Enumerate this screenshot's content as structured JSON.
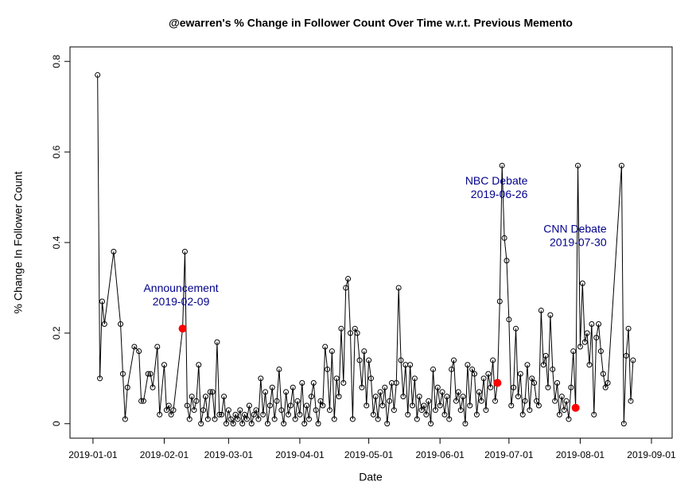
{
  "chart_data": {
    "type": "line",
    "title": "@ewarren's % Change in Follower Count Over Time w.r.t. Previous Memento",
    "x_label": "Date",
    "y_label": "% Change In Follower Count",
    "color": "#000000",
    "highlight_color": "#ff0000",
    "xlim": [
      "2018-12-22",
      "2019-09-10"
    ],
    "ylim": [
      -0.032,
      0.832
    ],
    "xticks": [
      "2019-01-01",
      "2019-02-01",
      "2019-03-01",
      "2019-04-01",
      "2019-05-01",
      "2019-06-01",
      "2019-07-01",
      "2019-08-01",
      "2019-09-01"
    ],
    "yticks": [
      0,
      0.2,
      0.4,
      0.6,
      0.8
    ],
    "annotations": [
      {
        "label": "Announcement",
        "date": "2019-02-09",
        "value": 0.21
      },
      {
        "label": "NBC Debate",
        "date": "2019-06-26",
        "value": 0.09
      },
      {
        "label": "CNN Debate",
        "date": "2019-07-30",
        "value": 0.035
      }
    ],
    "x": [
      "2019-01-03",
      "2019-01-04",
      "2019-01-05",
      "2019-01-06",
      "2019-01-10",
      "2019-01-13",
      "2019-01-14",
      "2019-01-15",
      "2019-01-16",
      "2019-01-19",
      "2019-01-21",
      "2019-01-22",
      "2019-01-23",
      "2019-01-25",
      "2019-01-26",
      "2019-01-27",
      "2019-01-29",
      "2019-01-30",
      "2019-02-01",
      "2019-02-02",
      "2019-02-03",
      "2019-02-04",
      "2019-02-05",
      "2019-02-09",
      "2019-02-10",
      "2019-02-11",
      "2019-02-12",
      "2019-02-13",
      "2019-02-14",
      "2019-02-15",
      "2019-02-16",
      "2019-02-17",
      "2019-02-18",
      "2019-02-19",
      "2019-02-20",
      "2019-02-21",
      "2019-02-22",
      "2019-02-23",
      "2019-02-24",
      "2019-02-25",
      "2019-02-26",
      "2019-02-27",
      "2019-02-28",
      "2019-03-01",
      "2019-03-02",
      "2019-03-03",
      "2019-03-04",
      "2019-03-05",
      "2019-03-06",
      "2019-03-07",
      "2019-03-08",
      "2019-03-09",
      "2019-03-10",
      "2019-03-11",
      "2019-03-12",
      "2019-03-13",
      "2019-03-14",
      "2019-03-15",
      "2019-03-16",
      "2019-03-17",
      "2019-03-18",
      "2019-03-19",
      "2019-03-20",
      "2019-03-21",
      "2019-03-22",
      "2019-03-23",
      "2019-03-24",
      "2019-03-25",
      "2019-03-26",
      "2019-03-27",
      "2019-03-28",
      "2019-03-29",
      "2019-03-30",
      "2019-03-31",
      "2019-04-01",
      "2019-04-02",
      "2019-04-03",
      "2019-04-04",
      "2019-04-05",
      "2019-04-06",
      "2019-04-07",
      "2019-04-08",
      "2019-04-09",
      "2019-04-10",
      "2019-04-11",
      "2019-04-12",
      "2019-04-13",
      "2019-04-14",
      "2019-04-15",
      "2019-04-16",
      "2019-04-17",
      "2019-04-18",
      "2019-04-19",
      "2019-04-20",
      "2019-04-21",
      "2019-04-22",
      "2019-04-23",
      "2019-04-24",
      "2019-04-25",
      "2019-04-26",
      "2019-04-27",
      "2019-04-28",
      "2019-04-29",
      "2019-04-30",
      "2019-05-01",
      "2019-05-02",
      "2019-05-03",
      "2019-05-04",
      "2019-05-05",
      "2019-05-06",
      "2019-05-07",
      "2019-05-08",
      "2019-05-09",
      "2019-05-10",
      "2019-05-11",
      "2019-05-12",
      "2019-05-13",
      "2019-05-14",
      "2019-05-15",
      "2019-05-16",
      "2019-05-17",
      "2019-05-18",
      "2019-05-19",
      "2019-05-20",
      "2019-05-21",
      "2019-05-22",
      "2019-05-23",
      "2019-05-24",
      "2019-05-25",
      "2019-05-26",
      "2019-05-27",
      "2019-05-28",
      "2019-05-29",
      "2019-05-30",
      "2019-05-31",
      "2019-06-01",
      "2019-06-02",
      "2019-06-03",
      "2019-06-04",
      "2019-06-05",
      "2019-06-06",
      "2019-06-07",
      "2019-06-08",
      "2019-06-09",
      "2019-06-10",
      "2019-06-11",
      "2019-06-12",
      "2019-06-13",
      "2019-06-14",
      "2019-06-15",
      "2019-06-16",
      "2019-06-17",
      "2019-06-18",
      "2019-06-19",
      "2019-06-20",
      "2019-06-21",
      "2019-06-22",
      "2019-06-23",
      "2019-06-24",
      "2019-06-25",
      "2019-06-26",
      "2019-06-27",
      "2019-06-28",
      "2019-06-29",
      "2019-06-30",
      "2019-07-01",
      "2019-07-02",
      "2019-07-03",
      "2019-07-04",
      "2019-07-05",
      "2019-07-06",
      "2019-07-07",
      "2019-07-08",
      "2019-07-09",
      "2019-07-10",
      "2019-07-11",
      "2019-07-12",
      "2019-07-13",
      "2019-07-14",
      "2019-07-15",
      "2019-07-16",
      "2019-07-17",
      "2019-07-18",
      "2019-07-19",
      "2019-07-20",
      "2019-07-21",
      "2019-07-22",
      "2019-07-23",
      "2019-07-24",
      "2019-07-25",
      "2019-07-26",
      "2019-07-27",
      "2019-07-28",
      "2019-07-29",
      "2019-07-30",
      "2019-07-31",
      "2019-08-01",
      "2019-08-02",
      "2019-08-03",
      "2019-08-04",
      "2019-08-05",
      "2019-08-06",
      "2019-08-07",
      "2019-08-08",
      "2019-08-09",
      "2019-08-10",
      "2019-08-11",
      "2019-08-12",
      "2019-08-13",
      "2019-08-19",
      "2019-08-20",
      "2019-08-21",
      "2019-08-22",
      "2019-08-23",
      "2019-08-24"
    ],
    "values": [
      0.77,
      0.1,
      0.27,
      0.22,
      0.38,
      0.22,
      0.11,
      0.01,
      0.08,
      0.17,
      0.16,
      0.05,
      0.05,
      0.11,
      0.11,
      0.08,
      0.17,
      0.02,
      0.13,
      0.03,
      0.04,
      0.02,
      0.03,
      0.21,
      0.38,
      0.04,
      0.01,
      0.06,
      0.03,
      0.05,
      0.13,
      0,
      0.03,
      0.06,
      0.01,
      0.07,
      0.07,
      0.01,
      0.18,
      0.02,
      0.02,
      0.06,
      0,
      0.03,
      0.01,
      0,
      0.02,
      0.01,
      0.03,
      0,
      0.02,
      0.01,
      0.04,
      0,
      0.02,
      0.03,
      0.01,
      0.1,
      0.02,
      0.07,
      0,
      0.04,
      0.08,
      0.01,
      0.05,
      0.12,
      0.03,
      0,
      0.07,
      0.02,
      0.04,
      0.08,
      0.01,
      0.05,
      0.02,
      0.09,
      0,
      0.04,
      0.01,
      0.06,
      0.09,
      0.03,
      0,
      0.05,
      0.04,
      0.17,
      0.12,
      0.03,
      0.16,
      0.01,
      0.1,
      0.06,
      0.21,
      0.09,
      0.3,
      0.32,
      0.2,
      0.01,
      0.21,
      0.2,
      0.14,
      0.08,
      0.16,
      0.04,
      0.14,
      0.1,
      0.02,
      0.06,
      0.01,
      0.07,
      0.04,
      0.08,
      0,
      0.05,
      0.09,
      0.03,
      0.09,
      0.3,
      0.14,
      0.06,
      0.13,
      0.02,
      0.13,
      0.04,
      0.1,
      0.01,
      0.06,
      0.03,
      0.04,
      0.02,
      0.05,
      0,
      0.12,
      0.03,
      0.08,
      0.04,
      0.07,
      0.02,
      0.06,
      0.01,
      0.12,
      0.14,
      0.05,
      0.07,
      0.03,
      0.06,
      0,
      0.13,
      0.04,
      0.12,
      0.11,
      0.02,
      0.07,
      0.05,
      0.1,
      0.03,
      0.11,
      0.08,
      0.14,
      0.05,
      0.09,
      0.27,
      0.57,
      0.41,
      0.36,
      0.23,
      0.04,
      0.08,
      0.21,
      0.06,
      0.11,
      0.02,
      0.05,
      0.13,
      0.03,
      0.1,
      0.09,
      0.05,
      0.04,
      0.25,
      0.13,
      0.15,
      0.08,
      0.24,
      0.12,
      0.05,
      0.09,
      0.02,
      0.06,
      0.03,
      0.05,
      0.01,
      0.08,
      0.16,
      0.035,
      0.57,
      0.17,
      0.31,
      0.18,
      0.2,
      0.13,
      0.22,
      0.02,
      0.19,
      0.22,
      0.16,
      0.11,
      0.08,
      0.09,
      0.57,
      0,
      0.15,
      0.21,
      0.05,
      0.14
    ]
  }
}
